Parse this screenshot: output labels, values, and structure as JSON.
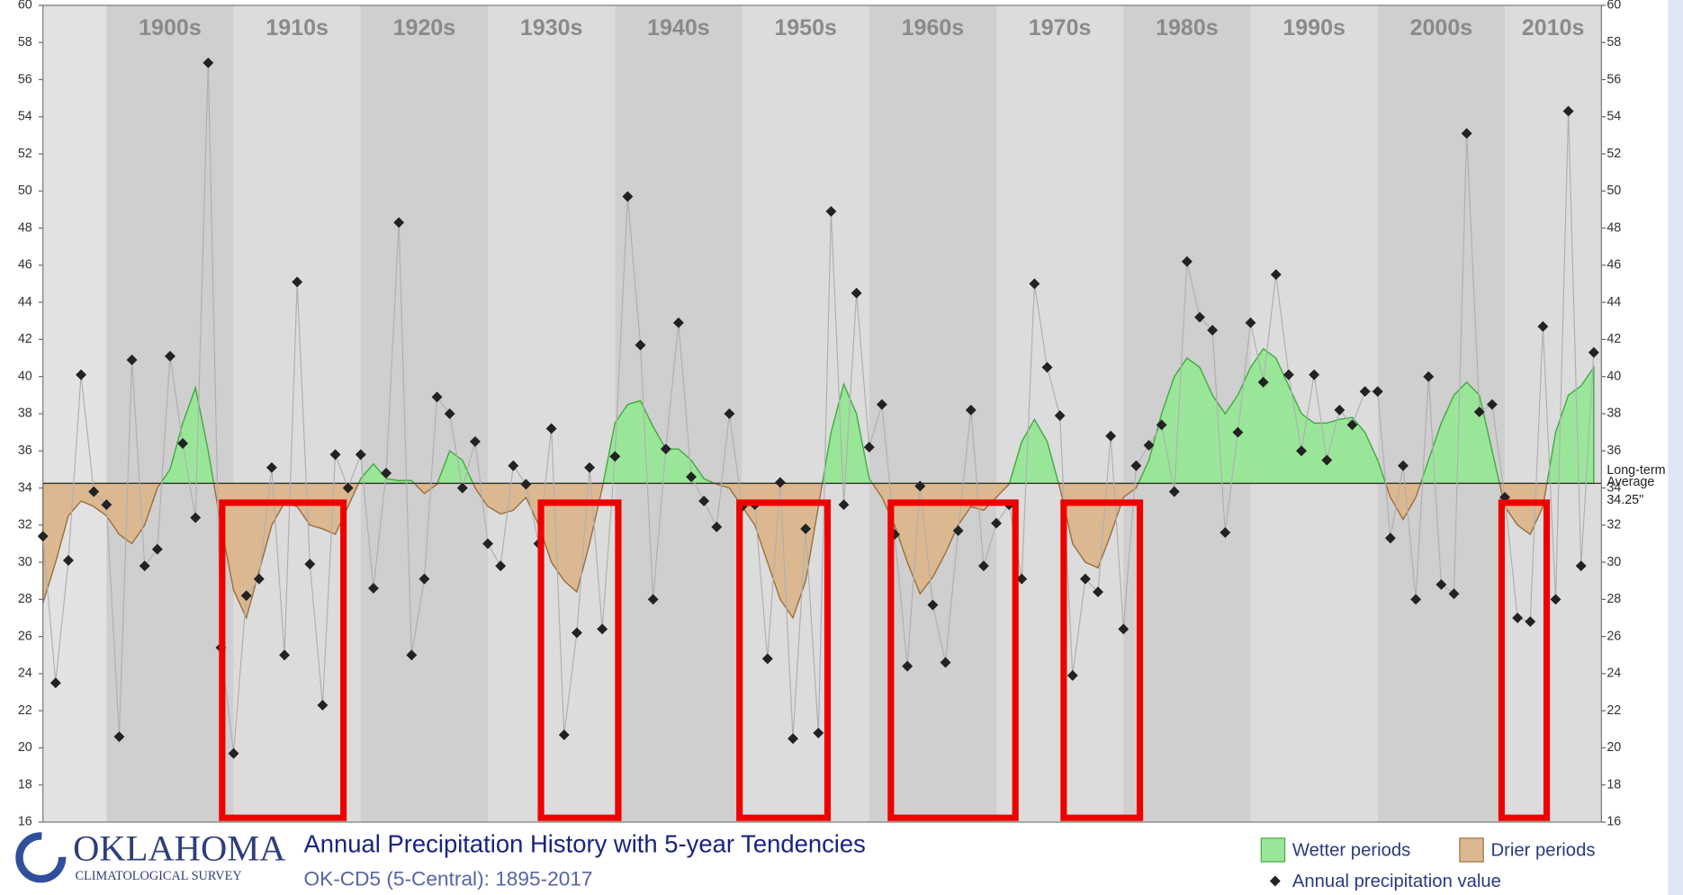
{
  "chart_data": {
    "type": "scatter-line",
    "title": "Annual Precipitation History with 5-year Tendencies",
    "subtitle": "OK-CD5 (5-Central): 1895-2017",
    "logo": {
      "name": "OKLAHOMA",
      "sub": "CLIMATOLOGICAL SURVEY"
    },
    "xlim": [
      1895,
      2017.6
    ],
    "xticks": [
      {
        "value": 1900,
        "label": "1900s"
      },
      {
        "value": 1910,
        "label": "1910s"
      },
      {
        "value": 1920,
        "label": "1920s"
      },
      {
        "value": 1930,
        "label": "1930s"
      },
      {
        "value": 1940,
        "label": "1940s"
      },
      {
        "value": 1950,
        "label": "1950s"
      },
      {
        "value": 1960,
        "label": "1960s"
      },
      {
        "value": 1970,
        "label": "1970s"
      },
      {
        "value": 1980,
        "label": "1980s"
      },
      {
        "value": 1990,
        "label": "1990s"
      },
      {
        "value": 2000,
        "label": "2000s"
      },
      {
        "value": 2010,
        "label": "2010s"
      }
    ],
    "ylim": [
      16,
      60
    ],
    "yticks": [
      16,
      18,
      20,
      22,
      24,
      26,
      28,
      30,
      32,
      34,
      36,
      38,
      40,
      42,
      44,
      46,
      48,
      50,
      52,
      54,
      56,
      58,
      60
    ],
    "average": {
      "value": 34.25,
      "label": "Long-term Average",
      "value_label": "34.25\""
    },
    "x": [
      1895,
      1896,
      1897,
      1898,
      1899,
      1900,
      1901,
      1902,
      1903,
      1904,
      1905,
      1906,
      1907,
      1908,
      1909,
      1910,
      1911,
      1912,
      1913,
      1914,
      1915,
      1916,
      1917,
      1918,
      1919,
      1920,
      1921,
      1922,
      1923,
      1924,
      1925,
      1926,
      1927,
      1928,
      1929,
      1930,
      1931,
      1932,
      1933,
      1934,
      1935,
      1936,
      1937,
      1938,
      1939,
      1940,
      1941,
      1942,
      1943,
      1944,
      1945,
      1946,
      1947,
      1948,
      1949,
      1950,
      1951,
      1952,
      1953,
      1954,
      1955,
      1956,
      1957,
      1958,
      1959,
      1960,
      1961,
      1962,
      1963,
      1964,
      1965,
      1966,
      1967,
      1968,
      1969,
      1970,
      1971,
      1972,
      1973,
      1974,
      1975,
      1976,
      1977,
      1978,
      1979,
      1980,
      1981,
      1982,
      1983,
      1984,
      1985,
      1986,
      1987,
      1988,
      1989,
      1990,
      1991,
      1992,
      1993,
      1994,
      1995,
      1996,
      1997,
      1998,
      1999,
      2000,
      2001,
      2002,
      2003,
      2004,
      2005,
      2006,
      2007,
      2008,
      2009,
      2010,
      2011,
      2012,
      2013,
      2014,
      2015,
      2016,
      2017
    ],
    "series": [
      {
        "name": "Annual precipitation value",
        "color": "#222222",
        "line_color": "#b0b0b0",
        "values": [
          31.4,
          23.5,
          30.1,
          40.1,
          33.8,
          33.1,
          20.6,
          40.9,
          29.8,
          30.7,
          41.1,
          36.4,
          32.4,
          56.9,
          25.4,
          19.7,
          28.2,
          29.1,
          35.1,
          25.0,
          45.1,
          29.9,
          22.3,
          35.8,
          34.0,
          35.8,
          28.6,
          34.8,
          48.3,
          25.0,
          29.1,
          38.9,
          38.0,
          34.0,
          36.5,
          31.0,
          29.8,
          35.2,
          34.2,
          31.0,
          37.2,
          20.7,
          26.2,
          35.1,
          26.4,
          35.7,
          49.7,
          41.7,
          28.0,
          36.1,
          42.9,
          34.6,
          33.3,
          31.9,
          38.0,
          33.0,
          33.1,
          24.8,
          34.3,
          20.5,
          31.8,
          20.8,
          48.9,
          33.1,
          44.5,
          36.2,
          38.5,
          31.5,
          24.4,
          34.1,
          27.7,
          24.6,
          31.7,
          38.2,
          29.8,
          32.1,
          33.1,
          29.1,
          45.0,
          40.5,
          37.9,
          23.9,
          29.1,
          28.4,
          36.8,
          26.4,
          35.2,
          36.3,
          37.4,
          33.8,
          46.2,
          43.2,
          42.5,
          31.6,
          37.0,
          42.9,
          39.7,
          45.5,
          40.1,
          36.0,
          40.1,
          35.5,
          38.2,
          37.4,
          39.2,
          39.2,
          31.3,
          35.2,
          28.0,
          40.0,
          28.8,
          28.3,
          53.1,
          38.1,
          38.5,
          33.5,
          27.0,
          26.8,
          42.7,
          28.0,
          54.3,
          29.8,
          41.3
        ]
      }
    ],
    "tendency": {
      "above_name": "Wetter periods",
      "above_color": "#99e699",
      "above_line": "#44aa44",
      "below_name": "Drier periods",
      "below_color": "#dcb890",
      "below_line": "#9a7040",
      "values": [
        27.8,
        30,
        32.5,
        33.3,
        33,
        32.5,
        31.5,
        31,
        32,
        34,
        35,
        37.5,
        39.4,
        36,
        32,
        28.5,
        27,
        29.5,
        32,
        33.2,
        33,
        32,
        31.8,
        31.5,
        33,
        34.5,
        35.3,
        34.5,
        34.4,
        34.4,
        33.7,
        34.2,
        36,
        35.5,
        34,
        33,
        32.6,
        32.8,
        33.5,
        32,
        30,
        29,
        28.4,
        31,
        34,
        37.5,
        38.5,
        38.7,
        37.3,
        36.1,
        36.1,
        35.5,
        34.5,
        34.2,
        34,
        33,
        32,
        30,
        28,
        27,
        29,
        33,
        37,
        39.6,
        38,
        34.5,
        33.5,
        32,
        30,
        28.3,
        29.2,
        30.5,
        32,
        33,
        32.8,
        33.5,
        34.2,
        36.5,
        37.7,
        36.5,
        34,
        31,
        30,
        29.7,
        31.5,
        33.5,
        34,
        35.5,
        38,
        40,
        41,
        40.5,
        39,
        38,
        39,
        40.5,
        41.5,
        41,
        39.5,
        38,
        37.5,
        37.5,
        37.7,
        37.8,
        37,
        35.5,
        33.5,
        32.3,
        33.5,
        35.5,
        37.5,
        39,
        39.7,
        39,
        36,
        33,
        32,
        31.5,
        33,
        37,
        39,
        39.5,
        40.5
      ]
    }
  }
}
